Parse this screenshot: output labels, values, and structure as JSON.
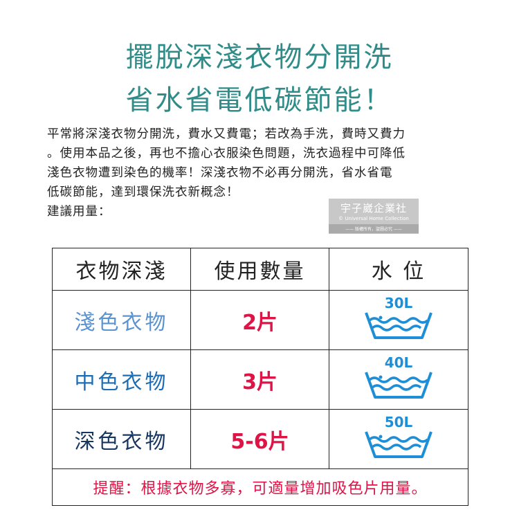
{
  "title": {
    "line1": "擺脫深淺衣物分開洗",
    "line2": "省水省電低碳節能！"
  },
  "paragraph": [
    "平常將深淺衣物分開洗，費水又費電；若改為手洗，費時又費力",
    "。使用本品之後，再也不擔心衣服染色問題，洗衣過程中可降低",
    "淺色衣物遭到染色的機率！深淺衣物不必再分開洗，省水省電",
    "低碳節能，達到環保洗衣新概念！",
    "建議用量："
  ],
  "watermark": {
    "name": "宇子崴企業社",
    "english": "© Universal Home Collection",
    "notice": "—— 版權所有，盜圖必究 ——"
  },
  "table": {
    "headers": [
      "衣物深淺",
      "使用數量",
      "水 位"
    ],
    "rows": [
      {
        "shade": "淺色衣物",
        "qty": "2片",
        "water": "30L",
        "color": "#5b93d0"
      },
      {
        "shade": "中色衣物",
        "qty": "3片",
        "water": "40L",
        "color": "#1b6db5"
      },
      {
        "shade": "深色衣物",
        "qty": "5-6片",
        "water": "50L",
        "color": "#17365f"
      }
    ],
    "footer": "提醒：根據衣物多寡，可適量增加吸色片用量。"
  },
  "colors": {
    "title": "#2f8c88",
    "quantity": "#de1446",
    "icon": "#1e8fd6"
  },
  "icons": {
    "water_level": "wash-basin-icon"
  }
}
